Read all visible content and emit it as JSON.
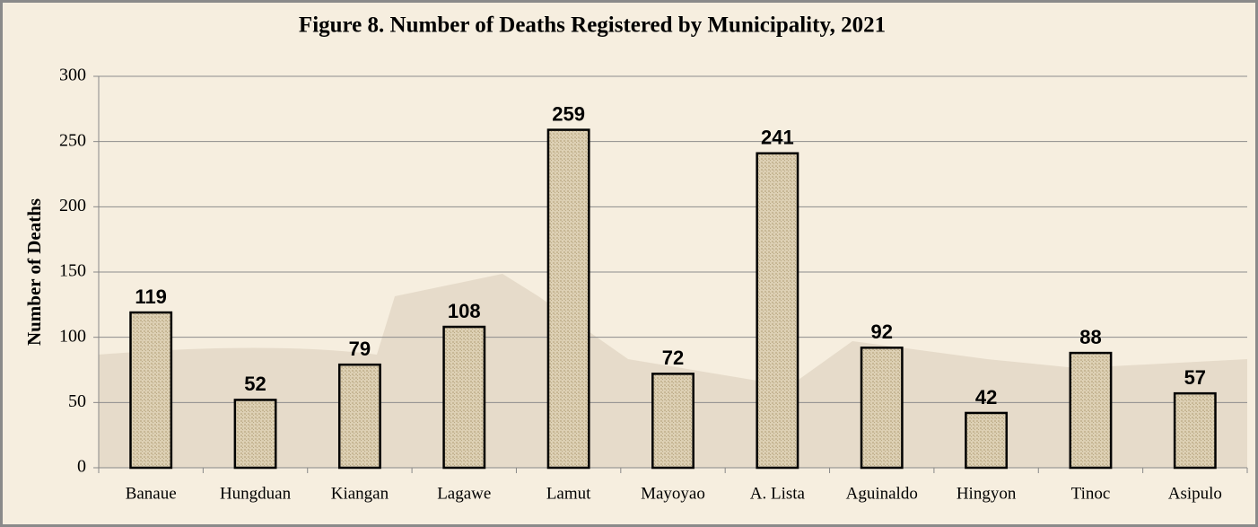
{
  "chart_data": {
    "type": "bar",
    "title": "Figure 8. Number of Deaths Registered by Municipality, 2021",
    "y_label": "Number of Deaths",
    "categories": [
      "Banaue",
      "Hungduan",
      "Kiangan",
      "Lagawe",
      "Lamut",
      "Mayoyao",
      "A. Lista",
      "Aguinaldo",
      "Hingyon",
      "Tinoc",
      "Asipulo"
    ],
    "values": [
      119,
      52,
      79,
      108,
      259,
      72,
      241,
      92,
      42,
      88,
      57
    ],
    "color": "#d9c9a9",
    "ylim": [
      0,
      300
    ],
    "yticks": [
      0,
      50,
      100,
      150,
      200,
      250,
      300
    ],
    "grid": true
  }
}
